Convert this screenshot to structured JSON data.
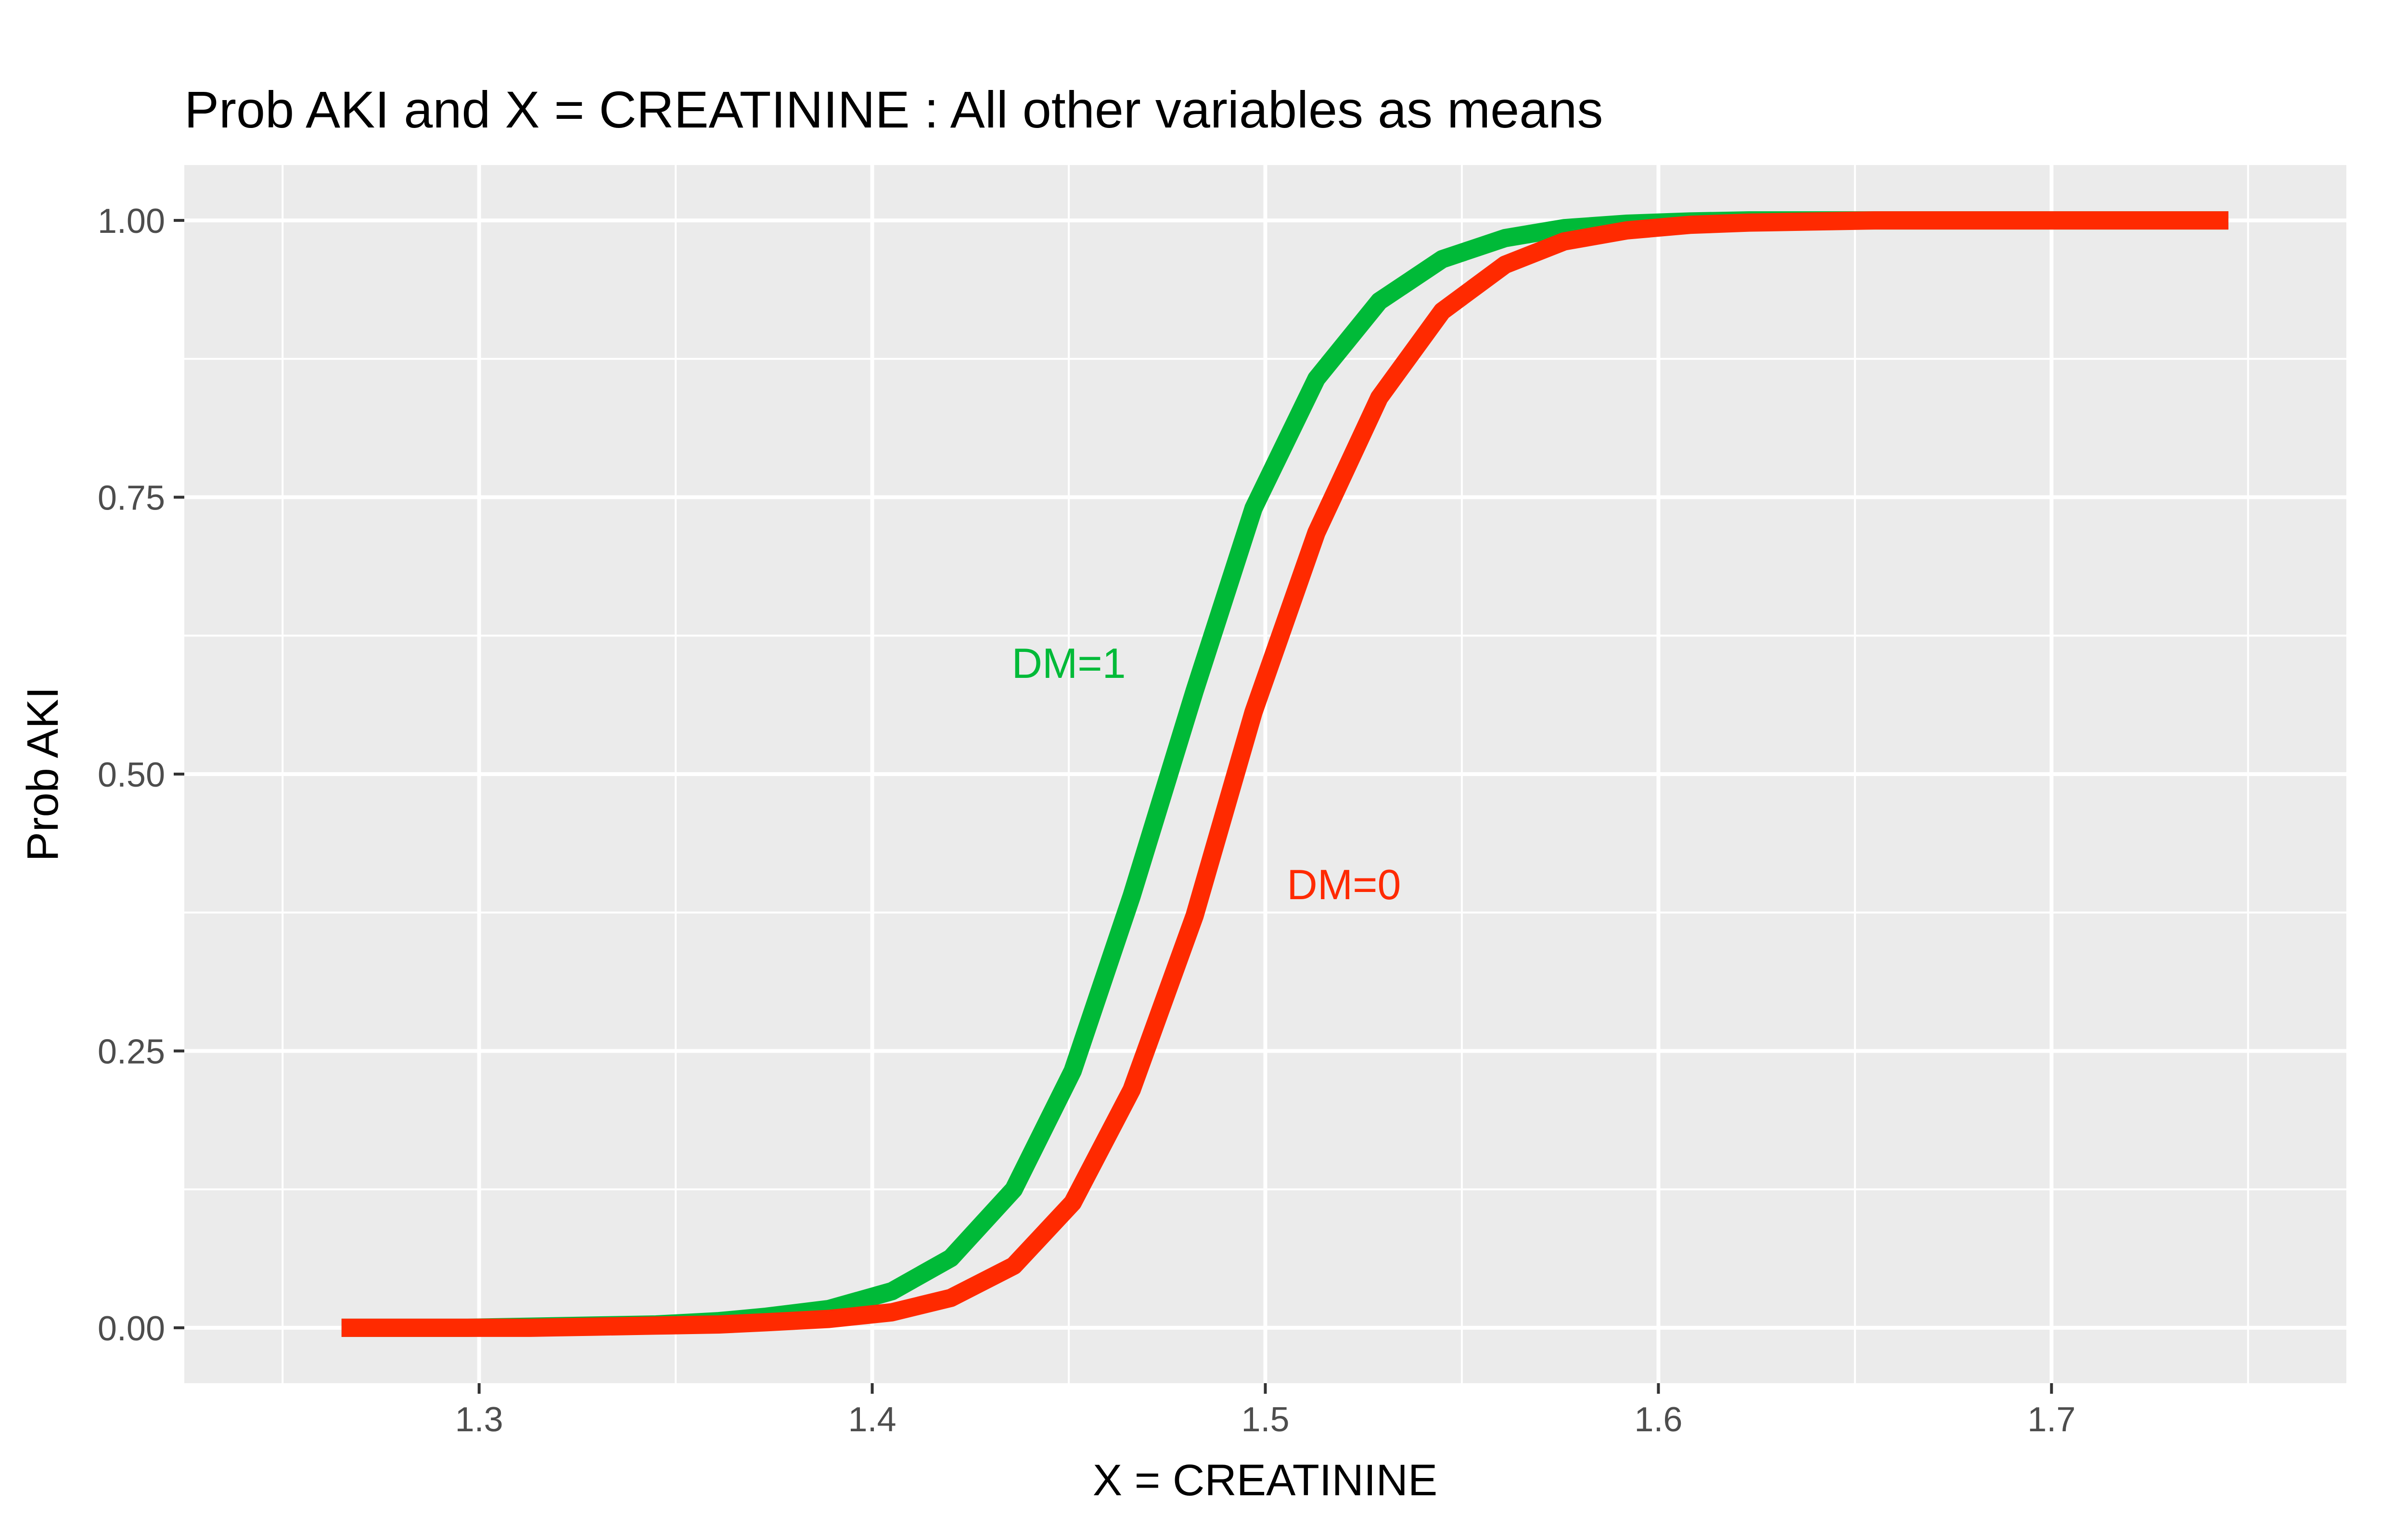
{
  "chart_data": {
    "type": "line",
    "title": "Prob AKI and X = CREATININE : All other variables as means",
    "xlabel": "X = CREATININE",
    "ylabel": "Prob AKI",
    "xlim": [
      1.225,
      1.775
    ],
    "ylim": [
      -0.05,
      1.05
    ],
    "x_ticks": [
      1.3,
      1.4,
      1.5,
      1.6,
      1.7
    ],
    "x_tick_labels": [
      "1.3",
      "1.4",
      "1.5",
      "1.6",
      "1.7"
    ],
    "y_ticks": [
      0,
      0.25,
      0.5,
      0.75,
      1
    ],
    "y_tick_labels": [
      "0.00",
      "0.25",
      "0.50",
      "0.75",
      "1.00"
    ],
    "grid": true,
    "legend": "none",
    "background_color": "#ebebeb",
    "grid_color": "#ffffff",
    "x": [
      1.265,
      1.281,
      1.297,
      1.313,
      1.329,
      1.345,
      1.361,
      1.373,
      1.389,
      1.405,
      1.42,
      1.436,
      1.451,
      1.466,
      1.482,
      1.497,
      1.513,
      1.529,
      1.545,
      1.561,
      1.576,
      1.592,
      1.608,
      1.623,
      1.639,
      1.655,
      1.671,
      1.687,
      1.703,
      1.719,
      1.735,
      1.745
    ],
    "series": [
      {
        "name": "DM=1",
        "color": "#00ba38",
        "values": [
          0.0,
          0.0,
          0.0,
          0.001,
          0.002,
          0.003,
          0.006,
          0.01,
          0.017,
          0.033,
          0.063,
          0.125,
          0.232,
          0.39,
          0.575,
          0.74,
          0.857,
          0.927,
          0.965,
          0.984,
          0.993,
          0.997,
          0.999,
          1.0,
          1.0,
          1.0,
          1.0,
          1.0,
          1.0,
          1.0,
          1.0,
          1.0
        ],
        "label_position": {
          "x": 1.45,
          "y": 0.6
        }
      },
      {
        "name": "DM=0",
        "color": "#ff2a00",
        "values": [
          0.0,
          0.0,
          0.0,
          0.0,
          0.001,
          0.002,
          0.003,
          0.005,
          0.008,
          0.014,
          0.027,
          0.056,
          0.113,
          0.215,
          0.372,
          0.556,
          0.718,
          0.84,
          0.918,
          0.96,
          0.981,
          0.991,
          0.996,
          0.998,
          0.999,
          1.0,
          1.0,
          1.0,
          1.0,
          1.0,
          1.0,
          1.0
        ],
        "label_position": {
          "x": 1.52,
          "y": 0.4
        }
      }
    ]
  }
}
